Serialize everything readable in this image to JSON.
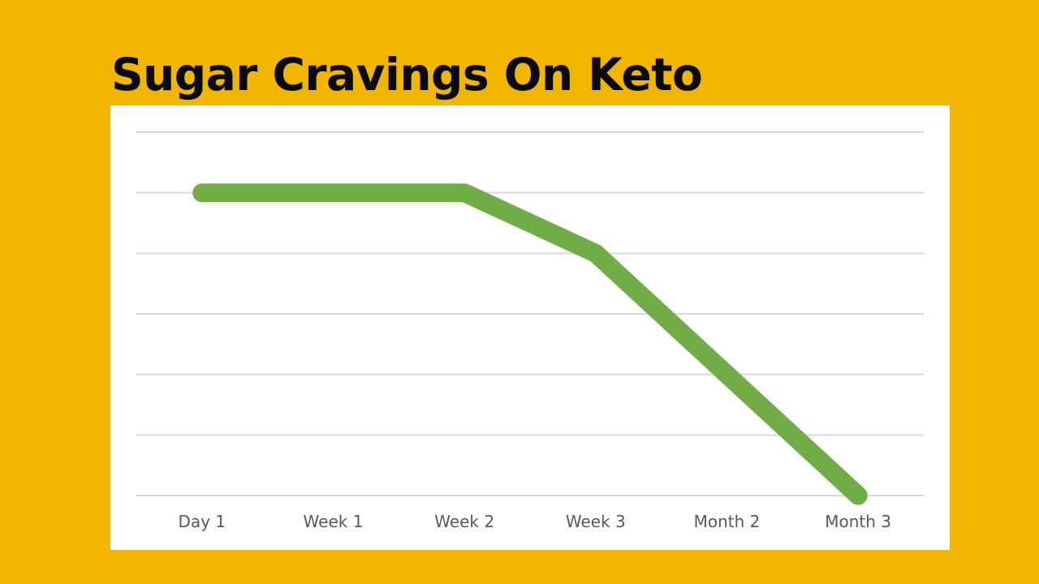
{
  "title": "Sugar Cravings On Keto",
  "colors": {
    "background": "#F2B600",
    "chart_background": "#FFFFFF",
    "series_line": "#70AD47",
    "gridline": "#D9D9D9",
    "axis_label": "#595959"
  },
  "chart_data": {
    "type": "line",
    "title": "Sugar Cravings On Keto",
    "xlabel": "",
    "ylabel": "",
    "categories": [
      "Day 1",
      "Week 1",
      "Week 2",
      "Week 3",
      "Month 2",
      "Month 3"
    ],
    "series": [
      {
        "name": "Sugar Cravings",
        "values": [
          5,
          5,
          5,
          4,
          2,
          0
        ]
      }
    ],
    "ylim": [
      0,
      6
    ],
    "yticks": [
      0,
      1,
      2,
      3,
      4,
      5,
      6
    ],
    "y_tick_labels_visible": false,
    "grid": true,
    "legend": "none"
  }
}
